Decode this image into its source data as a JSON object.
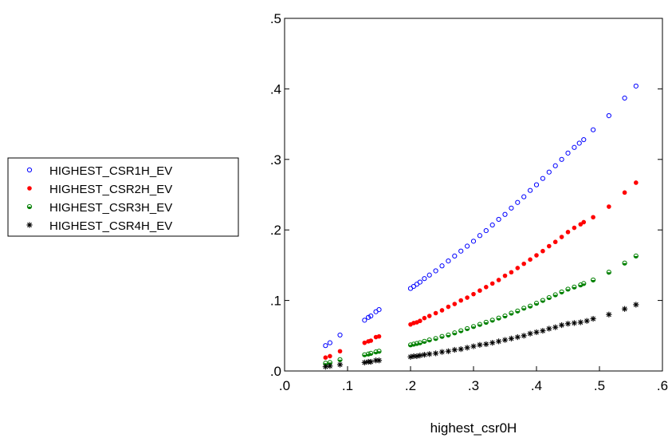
{
  "chart_data": {
    "type": "scatter",
    "title": "",
    "xlabel": "highest_csr0H",
    "ylabel": "",
    "xlim": [
      0,
      0.6
    ],
    "ylim": [
      0,
      0.5
    ],
    "x_ticks": [
      ".0",
      ".1",
      ".2",
      ".3",
      ".4",
      ".5",
      ".6"
    ],
    "y_ticks": [
      ".0",
      ".1",
      ".2",
      ".3",
      ".4",
      ".5"
    ],
    "grid": false,
    "legend_position": "left",
    "series": [
      {
        "name": "HIGHEST_CSR1H_EV",
        "marker": "open-circle",
        "color": "#0000ff",
        "points": [
          [
            0.065,
            0.036
          ],
          [
            0.072,
            0.04
          ],
          [
            0.088,
            0.051
          ],
          [
            0.127,
            0.072
          ],
          [
            0.133,
            0.076
          ],
          [
            0.137,
            0.078
          ],
          [
            0.145,
            0.084
          ],
          [
            0.15,
            0.087
          ],
          [
            0.2,
            0.117
          ],
          [
            0.205,
            0.12
          ],
          [
            0.21,
            0.123
          ],
          [
            0.215,
            0.126
          ],
          [
            0.222,
            0.131
          ],
          [
            0.23,
            0.136
          ],
          [
            0.24,
            0.142
          ],
          [
            0.25,
            0.149
          ],
          [
            0.26,
            0.156
          ],
          [
            0.27,
            0.163
          ],
          [
            0.28,
            0.17
          ],
          [
            0.29,
            0.177
          ],
          [
            0.3,
            0.184
          ],
          [
            0.31,
            0.192
          ],
          [
            0.32,
            0.199
          ],
          [
            0.33,
            0.207
          ],
          [
            0.34,
            0.215
          ],
          [
            0.35,
            0.222
          ],
          [
            0.36,
            0.231
          ],
          [
            0.37,
            0.239
          ],
          [
            0.38,
            0.247
          ],
          [
            0.39,
            0.256
          ],
          [
            0.4,
            0.264
          ],
          [
            0.41,
            0.273
          ],
          [
            0.42,
            0.282
          ],
          [
            0.43,
            0.291
          ],
          [
            0.44,
            0.3
          ],
          [
            0.45,
            0.309
          ],
          [
            0.46,
            0.317
          ],
          [
            0.468,
            0.323
          ],
          [
            0.475,
            0.328
          ],
          [
            0.49,
            0.342
          ],
          [
            0.515,
            0.362
          ],
          [
            0.54,
            0.387
          ],
          [
            0.558,
            0.404
          ]
        ]
      },
      {
        "name": "HIGHEST_CSR2H_EV",
        "marker": "filled-circle",
        "color": "#ff0000",
        "points": [
          [
            0.065,
            0.019
          ],
          [
            0.072,
            0.021
          ],
          [
            0.088,
            0.028
          ],
          [
            0.127,
            0.04
          ],
          [
            0.133,
            0.042
          ],
          [
            0.137,
            0.043
          ],
          [
            0.145,
            0.048
          ],
          [
            0.15,
            0.049
          ],
          [
            0.2,
            0.066
          ],
          [
            0.205,
            0.068
          ],
          [
            0.21,
            0.069
          ],
          [
            0.215,
            0.071
          ],
          [
            0.222,
            0.075
          ],
          [
            0.23,
            0.078
          ],
          [
            0.24,
            0.082
          ],
          [
            0.25,
            0.086
          ],
          [
            0.26,
            0.091
          ],
          [
            0.27,
            0.095
          ],
          [
            0.28,
            0.1
          ],
          [
            0.29,
            0.104
          ],
          [
            0.3,
            0.109
          ],
          [
            0.31,
            0.114
          ],
          [
            0.32,
            0.119
          ],
          [
            0.33,
            0.124
          ],
          [
            0.34,
            0.129
          ],
          [
            0.35,
            0.135
          ],
          [
            0.36,
            0.14
          ],
          [
            0.37,
            0.146
          ],
          [
            0.38,
            0.152
          ],
          [
            0.39,
            0.158
          ],
          [
            0.4,
            0.164
          ],
          [
            0.41,
            0.17
          ],
          [
            0.42,
            0.177
          ],
          [
            0.43,
            0.183
          ],
          [
            0.44,
            0.19
          ],
          [
            0.45,
            0.197
          ],
          [
            0.46,
            0.203
          ],
          [
            0.47,
            0.208
          ],
          [
            0.475,
            0.211
          ],
          [
            0.49,
            0.218
          ],
          [
            0.515,
            0.233
          ],
          [
            0.54,
            0.253
          ],
          [
            0.558,
            0.267
          ]
        ]
      },
      {
        "name": "HIGHEST_CSR3H_EV",
        "marker": "half-circle",
        "color": "#008000",
        "points": [
          [
            0.065,
            0.011
          ],
          [
            0.072,
            0.012
          ],
          [
            0.088,
            0.016
          ],
          [
            0.127,
            0.023
          ],
          [
            0.133,
            0.024
          ],
          [
            0.137,
            0.025
          ],
          [
            0.145,
            0.027
          ],
          [
            0.15,
            0.028
          ],
          [
            0.2,
            0.037
          ],
          [
            0.205,
            0.038
          ],
          [
            0.21,
            0.039
          ],
          [
            0.215,
            0.04
          ],
          [
            0.222,
            0.042
          ],
          [
            0.23,
            0.044
          ],
          [
            0.24,
            0.046
          ],
          [
            0.25,
            0.049
          ],
          [
            0.26,
            0.051
          ],
          [
            0.27,
            0.054
          ],
          [
            0.28,
            0.057
          ],
          [
            0.29,
            0.06
          ],
          [
            0.3,
            0.063
          ],
          [
            0.31,
            0.066
          ],
          [
            0.32,
            0.069
          ],
          [
            0.33,
            0.072
          ],
          [
            0.34,
            0.075
          ],
          [
            0.35,
            0.078
          ],
          [
            0.36,
            0.082
          ],
          [
            0.37,
            0.085
          ],
          [
            0.38,
            0.089
          ],
          [
            0.39,
            0.092
          ],
          [
            0.4,
            0.096
          ],
          [
            0.41,
            0.1
          ],
          [
            0.42,
            0.104
          ],
          [
            0.43,
            0.108
          ],
          [
            0.44,
            0.112
          ],
          [
            0.45,
            0.116
          ],
          [
            0.46,
            0.119
          ],
          [
            0.47,
            0.122
          ],
          [
            0.475,
            0.124
          ],
          [
            0.49,
            0.129
          ],
          [
            0.515,
            0.14
          ],
          [
            0.54,
            0.153
          ],
          [
            0.558,
            0.163
          ]
        ]
      },
      {
        "name": "HIGHEST_CSR4H_EV",
        "marker": "asterisk",
        "color": "#000000",
        "points": [
          [
            0.065,
            0.006
          ],
          [
            0.072,
            0.007
          ],
          [
            0.088,
            0.009
          ],
          [
            0.127,
            0.012
          ],
          [
            0.133,
            0.013
          ],
          [
            0.137,
            0.013
          ],
          [
            0.145,
            0.015
          ],
          [
            0.15,
            0.015
          ],
          [
            0.2,
            0.02
          ],
          [
            0.205,
            0.021
          ],
          [
            0.21,
            0.021
          ],
          [
            0.215,
            0.022
          ],
          [
            0.222,
            0.023
          ],
          [
            0.23,
            0.024
          ],
          [
            0.24,
            0.025
          ],
          [
            0.25,
            0.027
          ],
          [
            0.26,
            0.028
          ],
          [
            0.27,
            0.03
          ],
          [
            0.28,
            0.031
          ],
          [
            0.29,
            0.033
          ],
          [
            0.3,
            0.035
          ],
          [
            0.31,
            0.037
          ],
          [
            0.32,
            0.038
          ],
          [
            0.33,
            0.04
          ],
          [
            0.34,
            0.042
          ],
          [
            0.35,
            0.044
          ],
          [
            0.36,
            0.046
          ],
          [
            0.37,
            0.048
          ],
          [
            0.38,
            0.05
          ],
          [
            0.39,
            0.053
          ],
          [
            0.4,
            0.055
          ],
          [
            0.41,
            0.057
          ],
          [
            0.42,
            0.06
          ],
          [
            0.43,
            0.062
          ],
          [
            0.44,
            0.065
          ],
          [
            0.45,
            0.067
          ],
          [
            0.46,
            0.068
          ],
          [
            0.47,
            0.069
          ],
          [
            0.48,
            0.071
          ],
          [
            0.49,
            0.074
          ],
          [
            0.515,
            0.08
          ],
          [
            0.54,
            0.088
          ],
          [
            0.558,
            0.094
          ]
        ]
      }
    ]
  }
}
